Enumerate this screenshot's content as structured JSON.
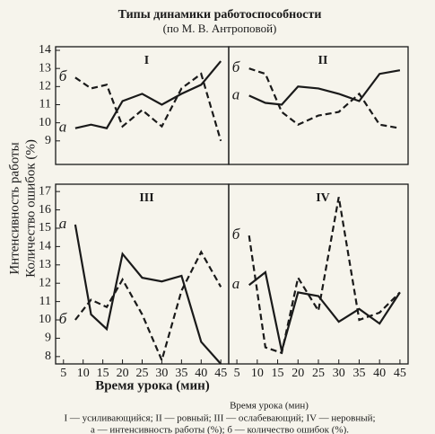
{
  "title": "Типы динамики работоспособности",
  "subtitle": "(по М. В. Антроповой)",
  "y_label": [
    "Интенсивность работы",
    "Количество ошибок (%)"
  ],
  "x_label": "Время урока (мин)",
  "caption": "Время урока (мин)",
  "legend": [
    "I — усиливающийся;   II — ровный;   III — ослабевающий;   IV — неровный;",
    "а — интенсивность работы (%); б — количество ошибок (%)."
  ],
  "chart_data": [
    {
      "type": "line",
      "title": "I",
      "x": [
        8,
        12,
        16,
        20,
        25,
        30,
        35,
        40,
        45
      ],
      "xlim": [
        3,
        47
      ],
      "ylim": [
        7.7,
        14.2
      ],
      "yticks": [
        9,
        10,
        11,
        12,
        13,
        14
      ],
      "series": [
        {
          "name": "а",
          "color": "#1a1a1a",
          "style": "solid",
          "values": [
            9.7,
            9.9,
            9.7,
            11.2,
            11.6,
            11.0,
            11.6,
            12.1,
            13.4
          ]
        },
        {
          "name": "б",
          "color": "#1a1a1a",
          "style": "dashed",
          "values": [
            12.5,
            11.9,
            12.1,
            9.8,
            10.7,
            9.8,
            11.9,
            12.7,
            9.0
          ]
        }
      ]
    },
    {
      "type": "line",
      "title": "II",
      "x": [
        8,
        12,
        16,
        20,
        25,
        30,
        35,
        40,
        45
      ],
      "xlim": [
        3,
        47
      ],
      "ylim": [
        7.7,
        14.2
      ],
      "series": [
        {
          "name": "а",
          "color": "#1a1a1a",
          "style": "solid",
          "values": [
            11.5,
            11.1,
            11.0,
            12.0,
            11.9,
            11.6,
            11.2,
            12.7,
            12.9
          ]
        },
        {
          "name": "б",
          "color": "#1a1a1a",
          "style": "dashed",
          "values": [
            13.0,
            12.7,
            10.6,
            9.9,
            10.4,
            10.6,
            11.6,
            9.9,
            9.7
          ]
        }
      ]
    },
    {
      "type": "line",
      "title": "III",
      "x": [
        8,
        12,
        16,
        20,
        25,
        30,
        35,
        40,
        45
      ],
      "xlim": [
        3,
        47
      ],
      "ylim": [
        7.6,
        17.4
      ],
      "yticks": [
        8,
        9,
        10,
        11,
        12,
        13,
        14,
        15,
        16,
        17
      ],
      "xticks": [
        5,
        10,
        15,
        20,
        25,
        30,
        35,
        40,
        45
      ],
      "series": [
        {
          "name": "а",
          "color": "#1a1a1a",
          "style": "solid",
          "values": [
            15.2,
            10.3,
            9.5,
            13.6,
            12.3,
            12.1,
            12.4,
            8.8,
            7.6
          ]
        },
        {
          "name": "б",
          "color": "#1a1a1a",
          "style": "dashed",
          "values": [
            10.0,
            11.1,
            10.7,
            12.2,
            10.3,
            7.8,
            11.6,
            13.7,
            11.8
          ]
        }
      ]
    },
    {
      "type": "line",
      "title": "IV",
      "x": [
        8,
        12,
        16,
        20,
        25,
        30,
        35,
        40,
        45
      ],
      "xlim": [
        3,
        47
      ],
      "ylim": [
        7.6,
        17.4
      ],
      "xticks": [
        5,
        10,
        15,
        20,
        25,
        30,
        35,
        40,
        45
      ],
      "series": [
        {
          "name": "а",
          "color": "#1a1a1a",
          "style": "solid",
          "values": [
            11.9,
            12.6,
            8.3,
            11.5,
            11.3,
            9.9,
            10.6,
            9.8,
            11.5
          ]
        },
        {
          "name": "б",
          "color": "#1a1a1a",
          "style": "dashed",
          "values": [
            14.6,
            8.5,
            8.2,
            12.3,
            10.5,
            16.7,
            10.0,
            10.4,
            11.5
          ]
        }
      ]
    }
  ]
}
